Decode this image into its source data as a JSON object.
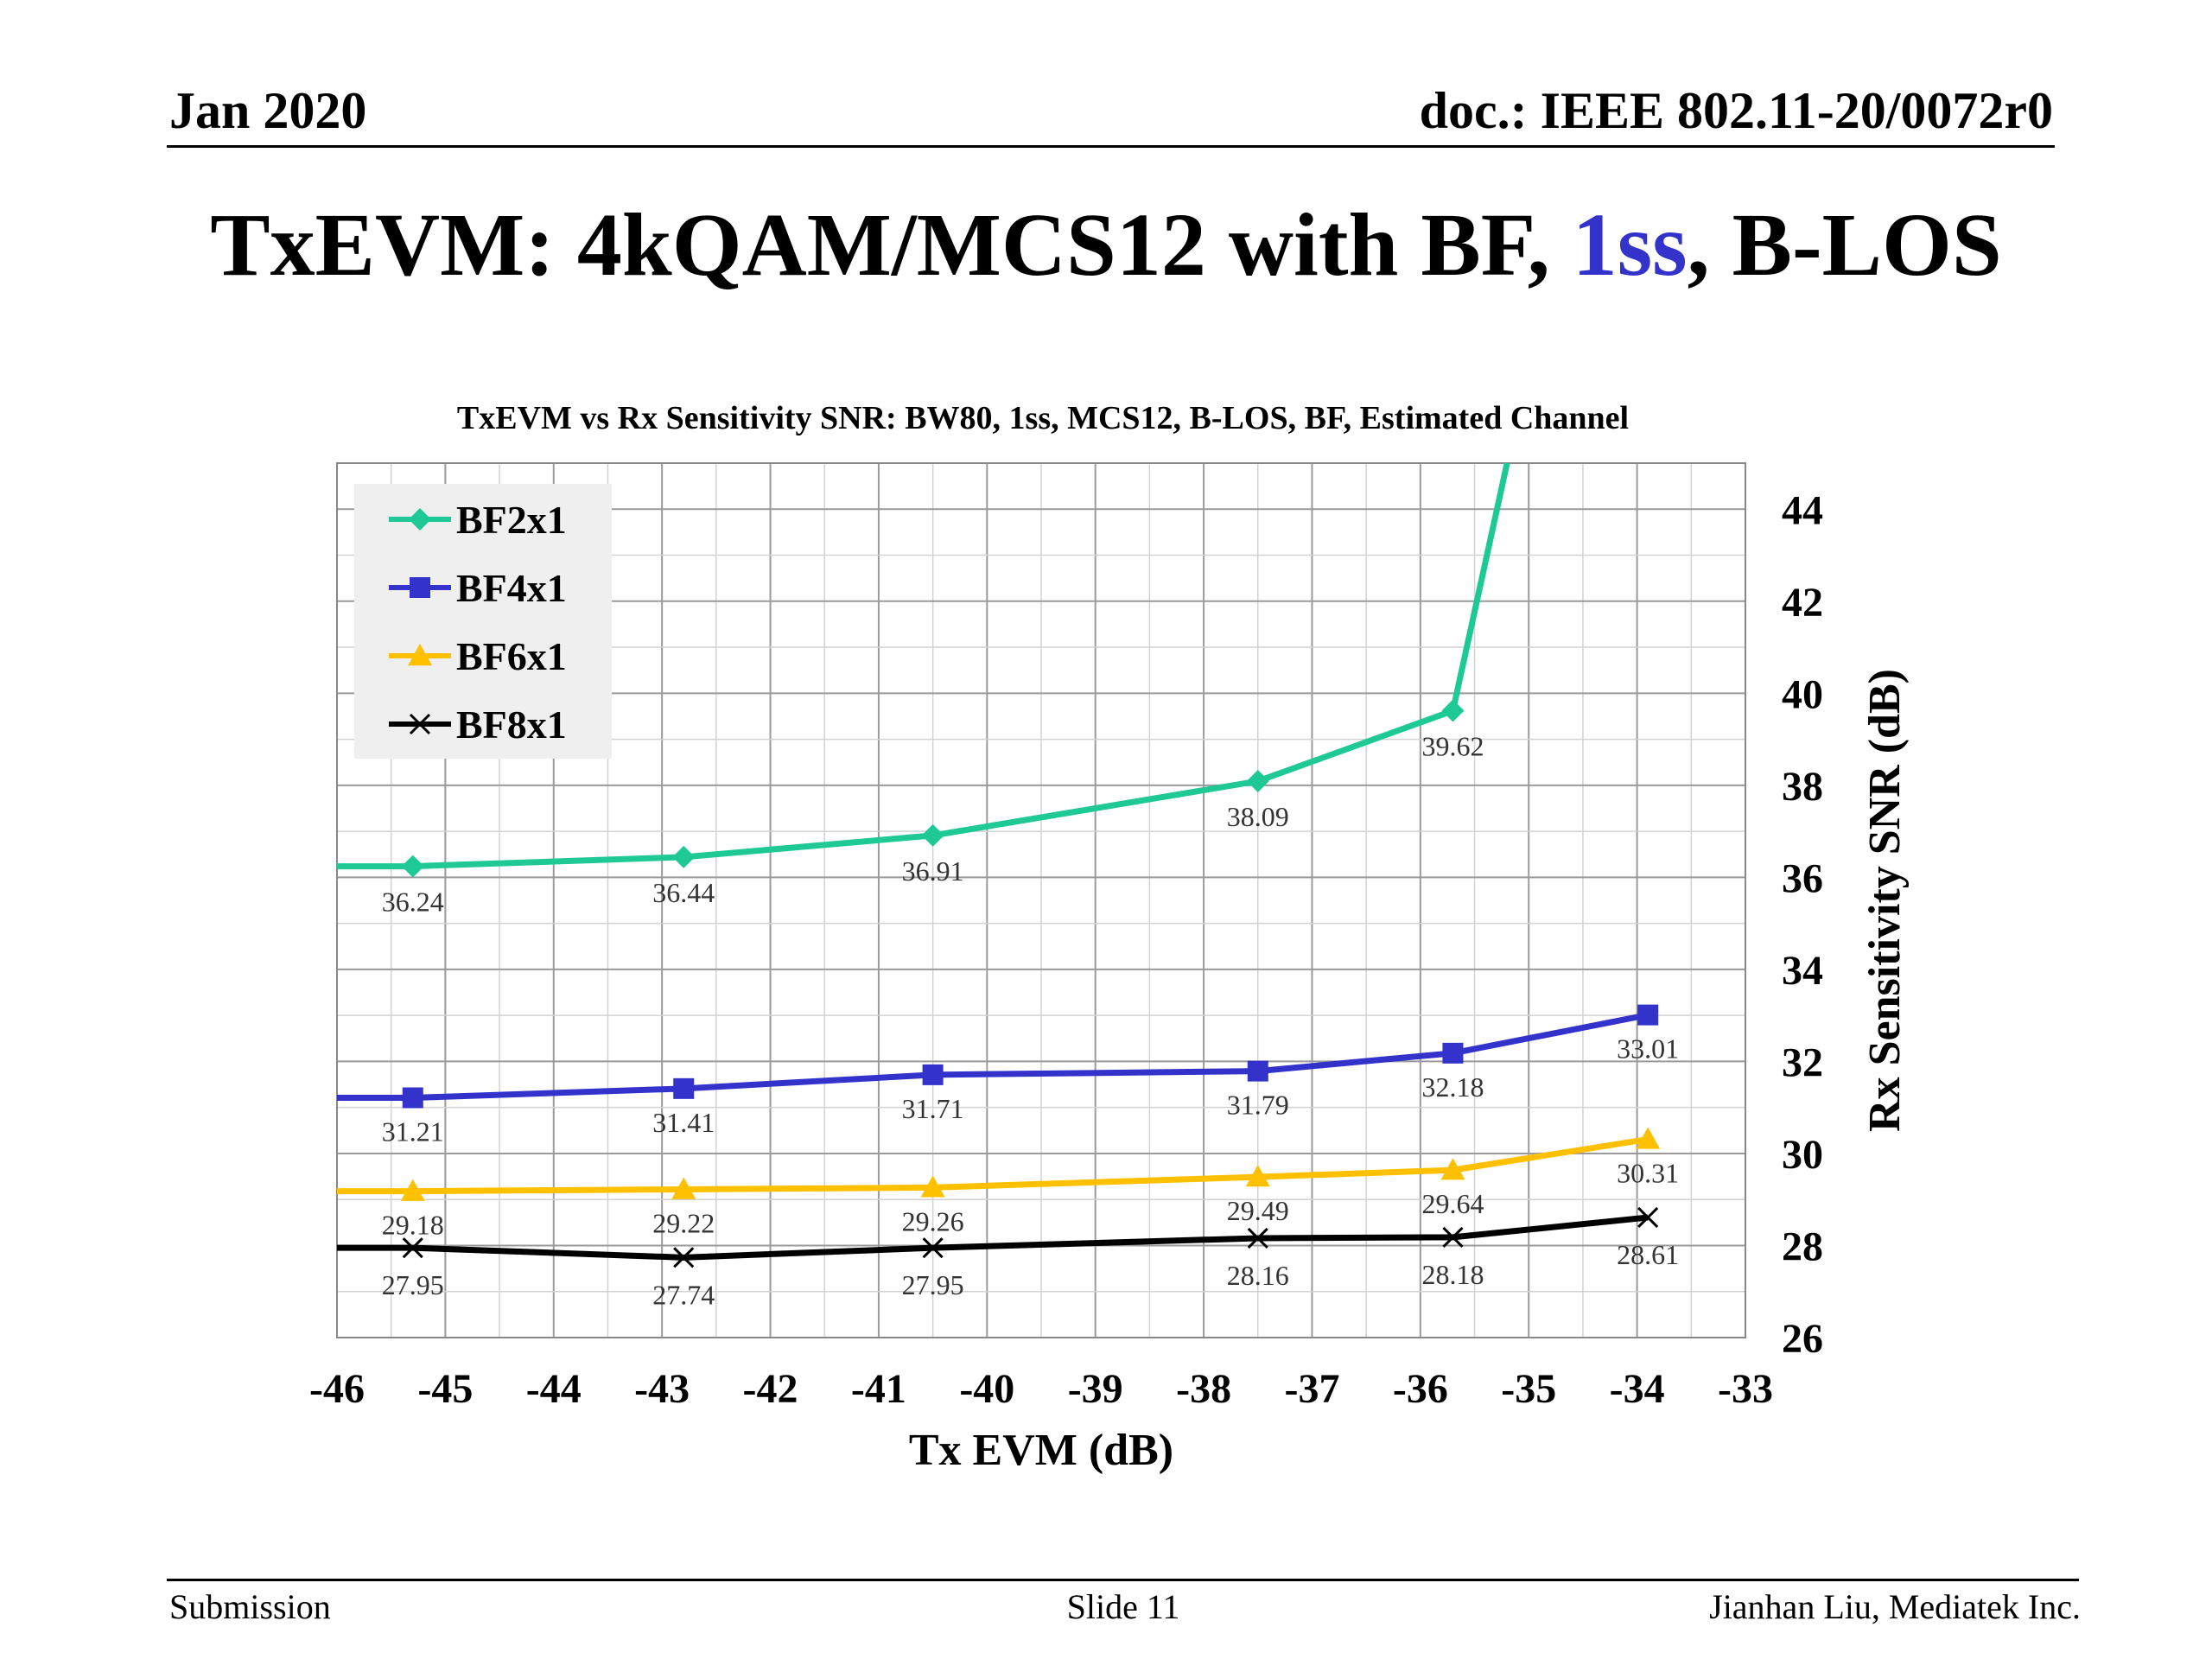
{
  "header": {
    "date": "Jan 2020",
    "doc": "doc.: IEEE 802.11-20/0072r0"
  },
  "slide_title": {
    "before": "TxEVM: 4kQAM/MCS12 with BF, ",
    "accent": "1ss",
    "after": ", B-LOS",
    "accent_color": "#3333cc"
  },
  "footer": {
    "left": "Submission",
    "center": "Slide 11",
    "right": "Jianhan Liu, Mediatek Inc."
  },
  "chart_data": {
    "type": "line",
    "title": "TxEVM vs Rx Sensitivity SNR: BW80, 1ss, MCS12, B-LOS, BF, Estimated Channel",
    "xlabel": "Tx EVM (dB)",
    "ylabel": "Rx Sensitivity SNR (dB)",
    "xlim": [
      -46,
      -33
    ],
    "ylim": [
      26,
      45
    ],
    "xticks": [
      -46,
      -45,
      -44,
      -43,
      -42,
      -41,
      -40,
      -39,
      -38,
      -37,
      -36,
      -35,
      -34,
      -33
    ],
    "yticks": [
      26,
      28,
      30,
      32,
      34,
      36,
      38,
      40,
      42,
      44
    ],
    "y_axis_side": "right",
    "grid": true,
    "legend_position": "top-left",
    "series": [
      {
        "name": "BF2x1",
        "color": "#1fc996",
        "marker": "diamond",
        "x": [
          -45.3,
          -42.8,
          -40.5,
          -37.5,
          -35.7,
          -35.2
        ],
        "y": [
          36.24,
          36.44,
          36.91,
          38.09,
          39.62,
          45
        ],
        "labels": [
          "36.24",
          "36.44",
          "36.91",
          "38.09",
          "39.62",
          ""
        ]
      },
      {
        "name": "BF4x1",
        "color": "#3333cc",
        "marker": "square",
        "x": [
          -45.3,
          -42.8,
          -40.5,
          -37.5,
          -35.7,
          -33.9
        ],
        "y": [
          31.21,
          31.41,
          31.71,
          31.79,
          32.18,
          33.01
        ],
        "labels": [
          "31.21",
          "31.41",
          "31.71",
          "31.79",
          "32.18",
          "33.01"
        ]
      },
      {
        "name": "BF6x1",
        "color": "#ffc000",
        "marker": "triangle",
        "x": [
          -45.3,
          -42.8,
          -40.5,
          -37.5,
          -35.7,
          -33.9
        ],
        "y": [
          29.18,
          29.22,
          29.26,
          29.49,
          29.64,
          30.31
        ],
        "labels": [
          "29.18",
          "29.22",
          "29.26",
          "29.49",
          "29.64",
          "30.31"
        ]
      },
      {
        "name": "BF8x1",
        "color": "#000000",
        "marker": "x",
        "x": [
          -45.3,
          -42.8,
          -40.5,
          -37.5,
          -35.7,
          -33.9
        ],
        "y": [
          27.95,
          27.74,
          27.95,
          28.16,
          28.18,
          28.61
        ],
        "labels": [
          "27.95",
          "27.74",
          "27.95",
          "28.16",
          "28.18",
          "28.61"
        ]
      }
    ]
  }
}
